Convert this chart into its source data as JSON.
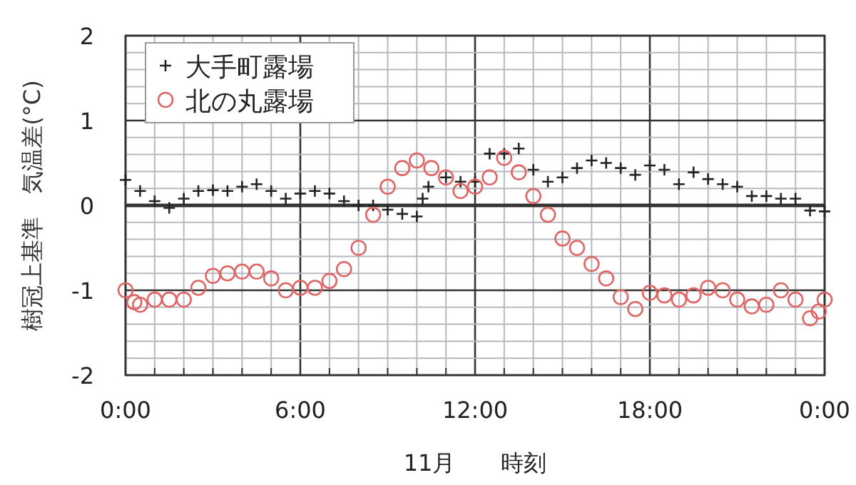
{
  "chart_data": {
    "type": "scatter",
    "xlabel": "11月　　時刻",
    "ylabel": "樹冠上基準　気温差(°C)",
    "xlim": [
      0,
      24
    ],
    "ylim": [
      -2,
      2
    ],
    "xticks": [
      {
        "value": 0,
        "label": "0:00"
      },
      {
        "value": 1,
        "label": null
      },
      {
        "value": 2,
        "label": null
      },
      {
        "value": 3,
        "label": null
      },
      {
        "value": 4,
        "label": null
      },
      {
        "value": 5,
        "label": null
      },
      {
        "value": 6,
        "label": "6:00"
      },
      {
        "value": 7,
        "label": null
      },
      {
        "value": 8,
        "label": null
      },
      {
        "value": 9,
        "label": null
      },
      {
        "value": 10,
        "label": null
      },
      {
        "value": 11,
        "label": null
      },
      {
        "value": 12,
        "label": "12:00"
      },
      {
        "value": 13,
        "label": null
      },
      {
        "value": 14,
        "label": null
      },
      {
        "value": 15,
        "label": null
      },
      {
        "value": 16,
        "label": null
      },
      {
        "value": 17,
        "label": null
      },
      {
        "value": 18,
        "label": "18:00"
      },
      {
        "value": 19,
        "label": null
      },
      {
        "value": 20,
        "label": null
      },
      {
        "value": 21,
        "label": null
      },
      {
        "value": 22,
        "label": null
      },
      {
        "value": 23,
        "label": null
      },
      {
        "value": 24,
        "label": "0:00"
      }
    ],
    "yticks": [
      -2,
      {
        "value": -1.8,
        "label": null
      },
      {
        "value": -1.6,
        "label": null
      },
      {
        "value": -1.4,
        "label": null
      },
      {
        "value": -1.2,
        "label": null
      },
      -1,
      {
        "value": -0.8,
        "label": null
      },
      {
        "value": -0.6,
        "label": null
      },
      {
        "value": -0.4,
        "label": null
      },
      {
        "value": -0.2,
        "label": null
      },
      0,
      {
        "value": 0.2,
        "label": null
      },
      {
        "value": 0.4,
        "label": null
      },
      {
        "value": 0.6,
        "label": null
      },
      {
        "value": 0.8,
        "label": null
      },
      1,
      {
        "value": 1.2,
        "label": null
      },
      {
        "value": 1.4,
        "label": null
      },
      {
        "value": 1.6,
        "label": null
      },
      {
        "value": 1.8,
        "label": null
      },
      2
    ],
    "grid": true,
    "legend": "top left",
    "series": [
      {
        "name": "大手町露場",
        "color": "#222222",
        "marker": "cross",
        "x": [
          0,
          0.5,
          1,
          1.5,
          2,
          2.5,
          3,
          3.5,
          4,
          4.5,
          5,
          5.5,
          6,
          6.5,
          7,
          7.5,
          8,
          8.5,
          9,
          9.5,
          10,
          10.2,
          10.4,
          11,
          11.5,
          12,
          12.5,
          13,
          13.5,
          14,
          14.5,
          15,
          15.5,
          16,
          16.5,
          17,
          17.5,
          18,
          18.5,
          19,
          19.5,
          20,
          20.5,
          21,
          21.5,
          22,
          22.5,
          23,
          23.5,
          24
        ],
        "values": [
          0.3,
          0.17,
          0.05,
          -0.03,
          0.08,
          0.17,
          0.18,
          0.17,
          0.22,
          0.25,
          0.17,
          0.08,
          0.14,
          0.17,
          0.14,
          0.05,
          0,
          0,
          -0.05,
          -0.1,
          -0.13,
          0.08,
          0.22,
          0.33,
          0.28,
          0.28,
          0.61,
          0.61,
          0.67,
          0.42,
          0.28,
          0.33,
          0.44,
          0.53,
          0.5,
          0.44,
          0.36,
          0.47,
          0.42,
          0.25,
          0.39,
          0.31,
          0.25,
          0.22,
          0.11,
          0.11,
          0.08,
          0.08,
          -0.06,
          -0.07
        ]
      },
      {
        "name": "北の丸露場",
        "color": "#e06666",
        "marker": "circle",
        "x": [
          0,
          0.3,
          0.5,
          1,
          1.5,
          2,
          2.5,
          3,
          3.5,
          4,
          4.5,
          5,
          5.5,
          6,
          6.5,
          7,
          7.5,
          8,
          8.5,
          9,
          9.5,
          10,
          10.5,
          11,
          11.5,
          12,
          12.5,
          13,
          13.5,
          14,
          14.5,
          15,
          15.5,
          16,
          16.5,
          17,
          17.5,
          18,
          18.5,
          19,
          19.5,
          20,
          20.5,
          21,
          21.5,
          22,
          22.5,
          23,
          23.5,
          23.8,
          24
        ],
        "values": [
          -1.0,
          -1.14,
          -1.17,
          -1.11,
          -1.11,
          -1.11,
          -0.97,
          -0.83,
          -0.8,
          -0.78,
          -0.78,
          -0.86,
          -1.0,
          -0.97,
          -0.97,
          -0.89,
          -0.75,
          -0.5,
          -0.11,
          0.22,
          0.44,
          0.53,
          0.44,
          0.33,
          0.17,
          0.22,
          0.33,
          0.56,
          0.39,
          0.11,
          -0.11,
          -0.39,
          -0.5,
          -0.69,
          -0.86,
          -1.08,
          -1.22,
          -1.03,
          -1.06,
          -1.11,
          -1.06,
          -0.97,
          -1.0,
          -1.11,
          -1.19,
          -1.17,
          -1.0,
          -1.11,
          -1.33,
          -1.25,
          -1.11
        ]
      }
    ]
  }
}
